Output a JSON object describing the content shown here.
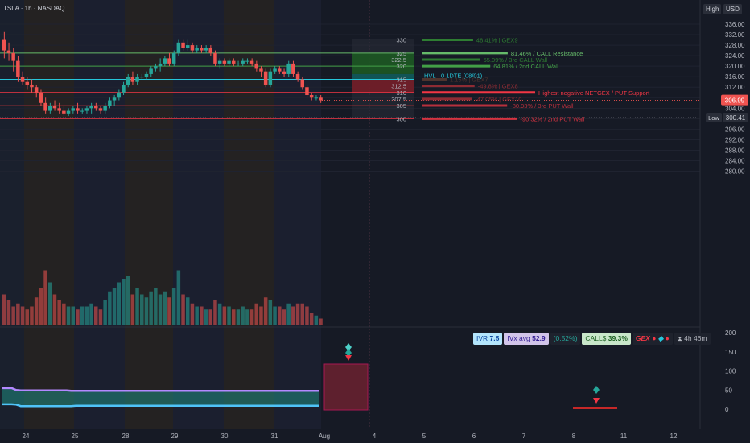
{
  "symbol_title": "TSLA · 1h · NASDAQ",
  "header_tags": {
    "high": "High",
    "currency": "USD"
  },
  "price_axis": {
    "labels": [
      "336.00",
      "332.00",
      "328.00",
      "324.00",
      "320.00",
      "316.00",
      "312.00",
      "308.00",
      "304.00",
      "300.00",
      "296.00",
      "292.00",
      "288.00",
      "284.00",
      "280.00"
    ],
    "current_price": "306.99",
    "low_tag": "Low",
    "low_value": "300.41"
  },
  "indicator_axis": {
    "labels": [
      "200",
      "150",
      "100",
      "50",
      "0"
    ]
  },
  "time_axis": {
    "labels": [
      "24",
      "25",
      "28",
      "29",
      "30",
      "31",
      "Aug",
      "4",
      "5",
      "6",
      "7",
      "8",
      "11",
      "12"
    ]
  },
  "gex_levels": [
    {
      "strike": "330",
      "text": "48.41% | GEX9",
      "color": "#2e7d32"
    },
    {
      "strike": "325",
      "text": "81.46% / CALL Resistance",
      "color": "#66bb6a"
    },
    {
      "strike": "322.5",
      "text": "55.09% / 3rd CALL Wall",
      "color": "#2e7d32"
    },
    {
      "strike": "320",
      "text": "64.81% / 2nd CALL Wall",
      "color": "#43a047"
    },
    {
      "strike": "315",
      "text": "1.15% | GEX7",
      "color": "#4e342e"
    },
    {
      "strike": "312.5",
      "text": "-49.8% | GEX8",
      "color": "#8e2b33"
    },
    {
      "strike": "310",
      "text": "Highest negative NETGEX / PUT Support",
      "color": "#f23645"
    },
    {
      "strike": "307.5",
      "text": "-47.05% | GEX10",
      "color": "#8e2b33"
    },
    {
      "strike": "305",
      "text": "-80.93% / 3rd PUT Wall",
      "color": "#b7303d"
    },
    {
      "strike": "300",
      "text": "-90.32% / 2nd PUT Wall",
      "color": "#d63341"
    }
  ],
  "hvl_label": {
    "prefix": "HVL",
    "suffix": "0 1DTE (08/01)"
  },
  "indicator_bar": {
    "ivr_label": "IVR",
    "ivr_value": "7.5",
    "ivx_label": "IVx avg",
    "ivx_value": "52.9",
    "change": "(0.52%)",
    "call_label": "CALL$",
    "call_value": "39.3%",
    "gex_label": "GEX",
    "timer": "4h 46m"
  },
  "colors": {
    "bull": "#26a69a",
    "bear": "#ef5350",
    "call_zone": "#1b5e20",
    "put_zone": "#7f1d27",
    "background": "#161a25"
  },
  "chart_data": {
    "type": "candlestick",
    "symbol": "TSLA",
    "timeframe": "1h",
    "price_range": [
      278,
      338
    ],
    "indicator_range": [
      -5,
      215
    ],
    "ohlc": [
      [
        330,
        333,
        323,
        326
      ],
      [
        326,
        329,
        322,
        325
      ],
      [
        325,
        327,
        318,
        322
      ],
      [
        322,
        324,
        314,
        316
      ],
      [
        316,
        318,
        313,
        314
      ],
      [
        314,
        316,
        311,
        313
      ],
      [
        313,
        315,
        310,
        312
      ],
      [
        312,
        313,
        308,
        310
      ],
      [
        310,
        311,
        305,
        306
      ],
      [
        306,
        308,
        302,
        303
      ],
      [
        303,
        306,
        302,
        305
      ],
      [
        305,
        307,
        303,
        304
      ],
      [
        304,
        306,
        302,
        303
      ],
      [
        303,
        305,
        301,
        302
      ],
      [
        302,
        304,
        301,
        303
      ],
      [
        303,
        305,
        302,
        304
      ],
      [
        304,
        306,
        302,
        303
      ],
      [
        303,
        304,
        302,
        303
      ],
      [
        303,
        305,
        302,
        304
      ],
      [
        304,
        306,
        302,
        305
      ],
      [
        305,
        306,
        303,
        304
      ],
      [
        304,
        305,
        302,
        303
      ],
      [
        303,
        306,
        302,
        305
      ],
      [
        305,
        308,
        304,
        307
      ],
      [
        307,
        309,
        305,
        308
      ],
      [
        308,
        311,
        307,
        310
      ],
      [
        310,
        314,
        309,
        313
      ],
      [
        313,
        317,
        312,
        316
      ],
      [
        316,
        318,
        313,
        314
      ],
      [
        314,
        317,
        313,
        316
      ],
      [
        316,
        317,
        315,
        316
      ],
      [
        316,
        318,
        315,
        317
      ],
      [
        317,
        320,
        316,
        319
      ],
      [
        319,
        321,
        318,
        320
      ],
      [
        320,
        323,
        318,
        321
      ],
      [
        321,
        324,
        320,
        323
      ],
      [
        323,
        325,
        320,
        321
      ],
      [
        321,
        326,
        320,
        325
      ],
      [
        325,
        330,
        324,
        329
      ],
      [
        329,
        330,
        326,
        327
      ],
      [
        327,
        330,
        326,
        328
      ],
      [
        328,
        329,
        325,
        326
      ],
      [
        326,
        328,
        325,
        327
      ],
      [
        327,
        328,
        325,
        326
      ],
      [
        326,
        328,
        325,
        327
      ],
      [
        327,
        328,
        324,
        325
      ],
      [
        325,
        326,
        320,
        321
      ],
      [
        321,
        323,
        319,
        322
      ],
      [
        322,
        323,
        320,
        321
      ],
      [
        321,
        323,
        320,
        322
      ],
      [
        322,
        323,
        320,
        321
      ],
      [
        321,
        322,
        320,
        321
      ],
      [
        321,
        323,
        320,
        322
      ],
      [
        322,
        323,
        321,
        322
      ],
      [
        322,
        323,
        320,
        321
      ],
      [
        321,
        322,
        318,
        319
      ],
      [
        319,
        320,
        316,
        318
      ],
      [
        318,
        319,
        312,
        313
      ],
      [
        313,
        319,
        312,
        318
      ],
      [
        318,
        320,
        317,
        319
      ],
      [
        319,
        320,
        317,
        318
      ],
      [
        318,
        319,
        316,
        317
      ],
      [
        317,
        322,
        316,
        321
      ],
      [
        321,
        322,
        316,
        317
      ],
      [
        317,
        318,
        314,
        315
      ],
      [
        315,
        316,
        311,
        312
      ],
      [
        312,
        313,
        308,
        309
      ],
      [
        309,
        310,
        307,
        308
      ],
      [
        308,
        309,
        307,
        308
      ],
      [
        308,
        309,
        306,
        307
      ]
    ],
    "volume_relative": [
      0.5,
      0.4,
      0.3,
      0.35,
      0.3,
      0.25,
      0.3,
      0.45,
      0.6,
      0.9,
      0.7,
      0.5,
      0.4,
      0.35,
      0.3,
      0.3,
      0.25,
      0.3,
      0.3,
      0.35,
      0.3,
      0.25,
      0.4,
      0.55,
      0.6,
      0.7,
      0.75,
      0.8,
      0.5,
      0.6,
      0.5,
      0.45,
      0.55,
      0.6,
      0.5,
      0.55,
      0.45,
      0.6,
      0.9,
      0.5,
      0.45,
      0.35,
      0.3,
      0.3,
      0.25,
      0.25,
      0.4,
      0.35,
      0.3,
      0.3,
      0.25,
      0.25,
      0.3,
      0.25,
      0.25,
      0.35,
      0.3,
      0.45,
      0.4,
      0.3,
      0.3,
      0.25,
      0.35,
      0.3,
      0.35,
      0.35,
      0.3,
      0.2,
      0.15,
      0.1
    ],
    "indicator_lines": [
      {
        "name": "upper",
        "color": "#b388ff",
        "values": [
          55,
          55,
          55,
          50,
          49,
          49,
          49,
          49,
          49,
          49,
          49,
          49,
          49,
          49,
          49,
          48,
          48,
          48,
          48,
          48,
          48,
          48,
          48,
          48,
          48,
          48,
          48,
          48,
          48,
          48,
          48,
          48,
          48,
          48,
          48,
          48,
          48,
          48,
          48,
          48,
          48,
          48,
          48,
          48,
          48,
          48,
          48,
          48,
          48,
          48,
          48,
          48,
          48,
          48,
          48,
          48,
          48,
          48,
          48,
          48,
          48,
          48,
          48,
          48,
          48,
          48,
          48,
          48,
          48,
          48
        ]
      },
      {
        "name": "lower",
        "color": "#4fc3f7",
        "values": [
          13,
          13,
          13,
          12,
          8,
          8,
          8,
          8,
          8,
          8,
          8,
          8,
          8,
          8,
          8,
          8,
          9,
          9,
          9,
          9,
          9,
          9,
          9,
          9,
          9,
          9,
          9,
          9,
          9,
          9,
          9,
          9,
          9,
          9,
          9,
          9,
          9,
          9,
          9,
          9,
          9,
          9,
          9,
          9,
          9,
          9,
          9,
          9,
          9,
          9,
          9,
          9,
          9,
          9,
          9,
          9,
          9,
          9,
          9,
          9,
          9,
          9,
          9,
          9,
          9,
          9,
          9,
          9,
          9,
          9
        ]
      }
    ]
  }
}
